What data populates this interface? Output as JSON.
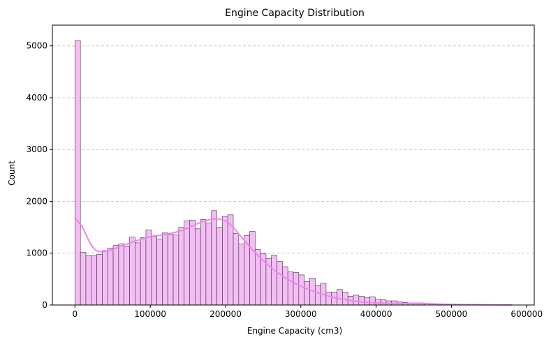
{
  "chart_data": {
    "type": "bar",
    "title": "Engine Capacity Distribution",
    "xlabel": "Engine Capacity (cm3)",
    "ylabel": "Count",
    "xlim": [
      -30000,
      610000
    ],
    "ylim": [
      0,
      5400
    ],
    "x_ticks": [
      0,
      100000,
      200000,
      300000,
      400000,
      500000,
      600000
    ],
    "y_ticks": [
      0,
      1000,
      2000,
      3000,
      4000,
      5000
    ],
    "grid": {
      "axis": "y",
      "style": "dashed"
    },
    "bar_color": "#f5bdf5",
    "bar_edge_color": "#333333",
    "kde_color": "#ee82ee",
    "bin_width": 7250,
    "bin_start": 0,
    "values": [
      5100,
      1020,
      950,
      950,
      980,
      1050,
      1100,
      1150,
      1180,
      1130,
      1310,
      1200,
      1300,
      1450,
      1320,
      1270,
      1390,
      1360,
      1350,
      1500,
      1620,
      1640,
      1470,
      1650,
      1580,
      1820,
      1500,
      1710,
      1740,
      1380,
      1180,
      1340,
      1420,
      1070,
      990,
      900,
      960,
      840,
      740,
      640,
      630,
      580,
      450,
      520,
      380,
      420,
      250,
      250,
      300,
      250,
      170,
      190,
      170,
      140,
      160,
      110,
      100,
      80,
      80,
      60,
      50,
      40,
      40,
      40,
      30,
      30,
      20,
      20,
      20,
      20,
      15,
      15,
      10,
      10,
      10,
      8,
      8,
      5,
      5,
      5
    ],
    "kde": {
      "x": [
        0,
        10000,
        20000,
        30000,
        45000,
        60000,
        80000,
        100000,
        120000,
        140000,
        155000,
        170000,
        180000,
        190000,
        200000,
        210000,
        220000,
        240000,
        260000,
        280000,
        300000,
        320000,
        340000,
        360000,
        380000,
        400000,
        420000,
        440000,
        460000,
        480000,
        500000,
        520000,
        540000,
        560000,
        580000
      ],
      "y": [
        1680,
        1500,
        1200,
        1040,
        1050,
        1130,
        1230,
        1320,
        1360,
        1430,
        1520,
        1610,
        1650,
        1660,
        1620,
        1500,
        1330,
        1000,
        730,
        520,
        360,
        250,
        160,
        100,
        60,
        40,
        30,
        35,
        30,
        20,
        12,
        8,
        5,
        3,
        2
      ]
    }
  }
}
